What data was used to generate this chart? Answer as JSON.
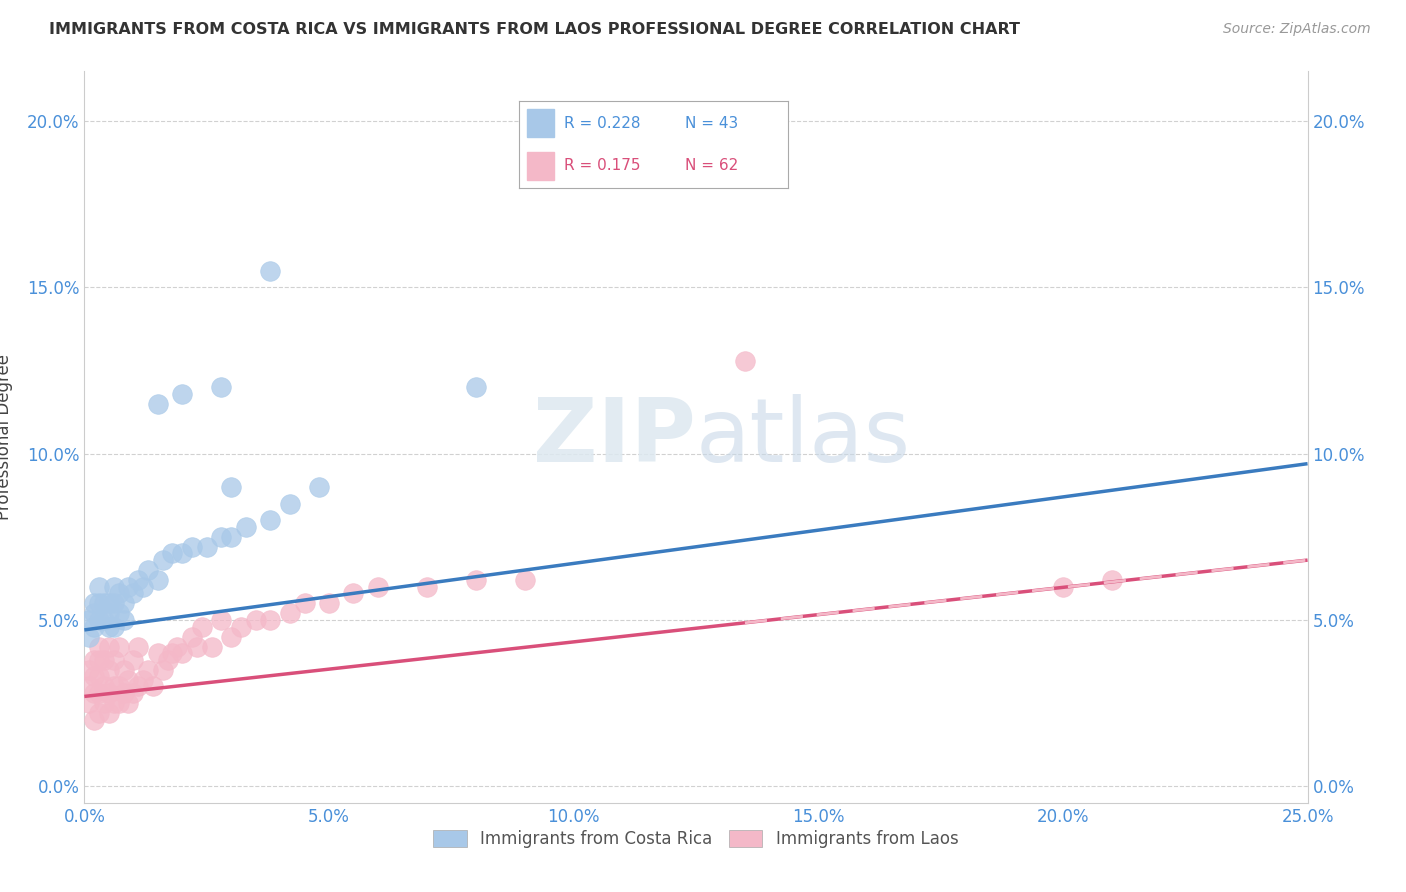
{
  "title": "IMMIGRANTS FROM COSTA RICA VS IMMIGRANTS FROM LAOS PROFESSIONAL DEGREE CORRELATION CHART",
  "source": "Source: ZipAtlas.com",
  "ylabel": "Professional Degree",
  "xlim": [
    0.0,
    0.25
  ],
  "ylim": [
    -0.005,
    0.215
  ],
  "xticks": [
    0.0,
    0.05,
    0.1,
    0.15,
    0.2,
    0.25
  ],
  "yticks": [
    0.0,
    0.05,
    0.1,
    0.15,
    0.2
  ],
  "legend_r1": "R = 0.228",
  "legend_n1": "N = 43",
  "legend_r2": "R = 0.175",
  "legend_n2": "N = 62",
  "color_blue": "#a8c8e8",
  "color_pink": "#f4b8c8",
  "color_line_blue": "#3a7bbf",
  "color_line_pink": "#d94f7a",
  "blue_trend": [
    0.047,
    0.097
  ],
  "pink_trend": [
    0.027,
    0.068
  ],
  "costa_rica_x": [
    0.001,
    0.001,
    0.002,
    0.002,
    0.002,
    0.003,
    0.003,
    0.003,
    0.004,
    0.004,
    0.005,
    0.005,
    0.005,
    0.006,
    0.006,
    0.006,
    0.007,
    0.007,
    0.008,
    0.008,
    0.009,
    0.01,
    0.011,
    0.012,
    0.013,
    0.015,
    0.016,
    0.018,
    0.02,
    0.022,
    0.025,
    0.028,
    0.03,
    0.033,
    0.038,
    0.042,
    0.048,
    0.03,
    0.028,
    0.02,
    0.015,
    0.08,
    0.038
  ],
  "costa_rica_y": [
    0.05,
    0.045,
    0.052,
    0.048,
    0.055,
    0.05,
    0.055,
    0.06,
    0.05,
    0.055,
    0.052,
    0.048,
    0.055,
    0.048,
    0.055,
    0.06,
    0.052,
    0.058,
    0.055,
    0.05,
    0.06,
    0.058,
    0.062,
    0.06,
    0.065,
    0.062,
    0.068,
    0.07,
    0.07,
    0.072,
    0.072,
    0.075,
    0.075,
    0.078,
    0.08,
    0.085,
    0.09,
    0.09,
    0.12,
    0.118,
    0.115,
    0.12,
    0.155
  ],
  "laos_x": [
    0.001,
    0.001,
    0.001,
    0.002,
    0.002,
    0.002,
    0.002,
    0.003,
    0.003,
    0.003,
    0.003,
    0.003,
    0.004,
    0.004,
    0.004,
    0.005,
    0.005,
    0.005,
    0.005,
    0.006,
    0.006,
    0.006,
    0.007,
    0.007,
    0.007,
    0.008,
    0.008,
    0.009,
    0.009,
    0.01,
    0.01,
    0.011,
    0.011,
    0.012,
    0.013,
    0.014,
    0.015,
    0.016,
    0.017,
    0.018,
    0.019,
    0.02,
    0.022,
    0.023,
    0.024,
    0.026,
    0.028,
    0.03,
    0.032,
    0.035,
    0.038,
    0.042,
    0.045,
    0.05,
    0.055,
    0.06,
    0.07,
    0.08,
    0.09,
    0.135,
    0.2,
    0.21
  ],
  "laos_y": [
    0.025,
    0.03,
    0.035,
    0.02,
    0.028,
    0.033,
    0.038,
    0.022,
    0.028,
    0.033,
    0.038,
    0.042,
    0.025,
    0.03,
    0.038,
    0.022,
    0.028,
    0.035,
    0.042,
    0.025,
    0.03,
    0.038,
    0.025,
    0.03,
    0.042,
    0.028,
    0.035,
    0.025,
    0.032,
    0.028,
    0.038,
    0.03,
    0.042,
    0.032,
    0.035,
    0.03,
    0.04,
    0.035,
    0.038,
    0.04,
    0.042,
    0.04,
    0.045,
    0.042,
    0.048,
    0.042,
    0.05,
    0.045,
    0.048,
    0.05,
    0.05,
    0.052,
    0.055,
    0.055,
    0.058,
    0.06,
    0.06,
    0.062,
    0.062,
    0.128,
    0.06,
    0.062
  ]
}
